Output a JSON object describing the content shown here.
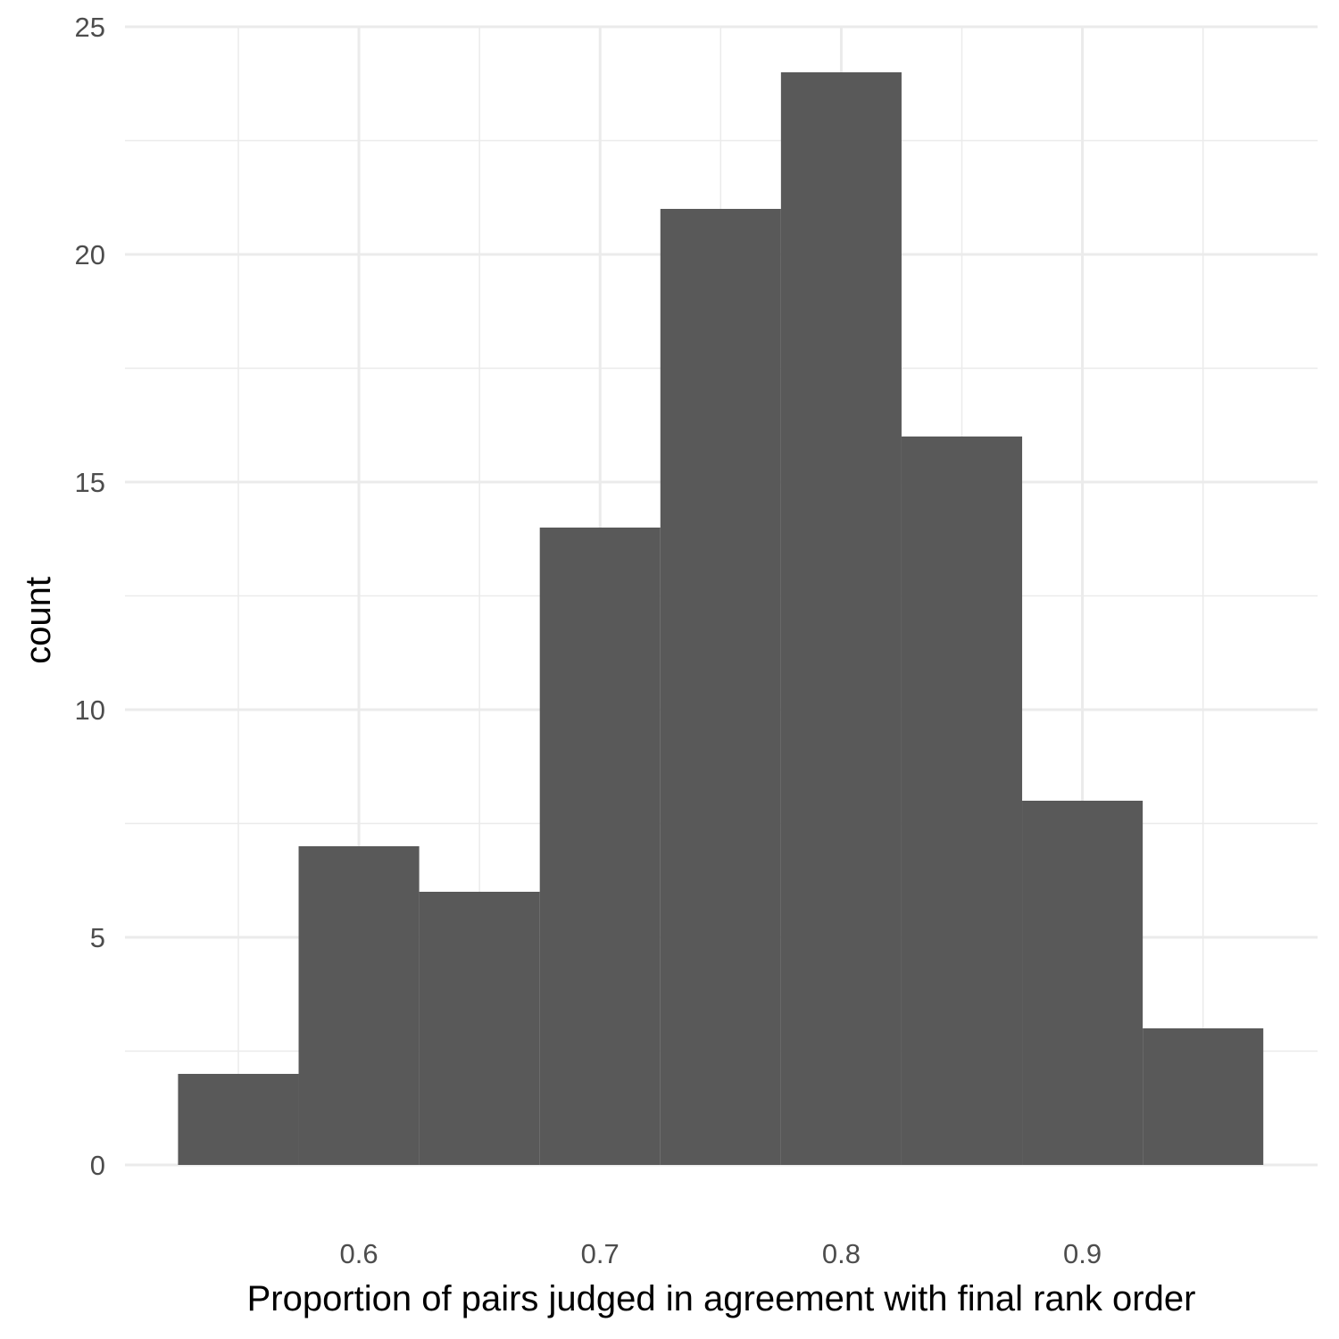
{
  "chart_data": {
    "type": "bar",
    "subtype": "histogram",
    "xlabel": "Proportion of pairs judged in agreement with final rank order",
    "ylabel": "count",
    "bins": [
      {
        "x0": 0.525,
        "x1": 0.575,
        "count": 2
      },
      {
        "x0": 0.575,
        "x1": 0.625,
        "count": 7
      },
      {
        "x0": 0.625,
        "x1": 0.675,
        "count": 6
      },
      {
        "x0": 0.675,
        "x1": 0.725,
        "count": 14
      },
      {
        "x0": 0.725,
        "x1": 0.775,
        "count": 21
      },
      {
        "x0": 0.775,
        "x1": 0.825,
        "count": 24
      },
      {
        "x0": 0.825,
        "x1": 0.875,
        "count": 16
      },
      {
        "x0": 0.875,
        "x1": 0.925,
        "count": 8
      },
      {
        "x0": 0.925,
        "x1": 0.975,
        "count": 3
      }
    ],
    "xlim": [
      0.503,
      0.9975
    ],
    "ylim": [
      0,
      25
    ],
    "x_ticks": [
      0.6,
      0.7,
      0.8,
      0.9
    ],
    "x_tick_labels": [
      "0.6",
      "0.7",
      "0.8",
      "0.9"
    ],
    "x_minor_ticks": [
      0.55,
      0.65,
      0.75,
      0.85,
      0.95
    ],
    "y_ticks": [
      0,
      5,
      10,
      15,
      20,
      25
    ],
    "y_tick_labels": [
      "0",
      "5",
      "10",
      "15",
      "20",
      "25"
    ],
    "y_minor_ticks": [
      2.5,
      7.5,
      12.5,
      17.5,
      22.5
    ],
    "grid": true,
    "bar_color": "#595959",
    "background": "#ffffff"
  }
}
